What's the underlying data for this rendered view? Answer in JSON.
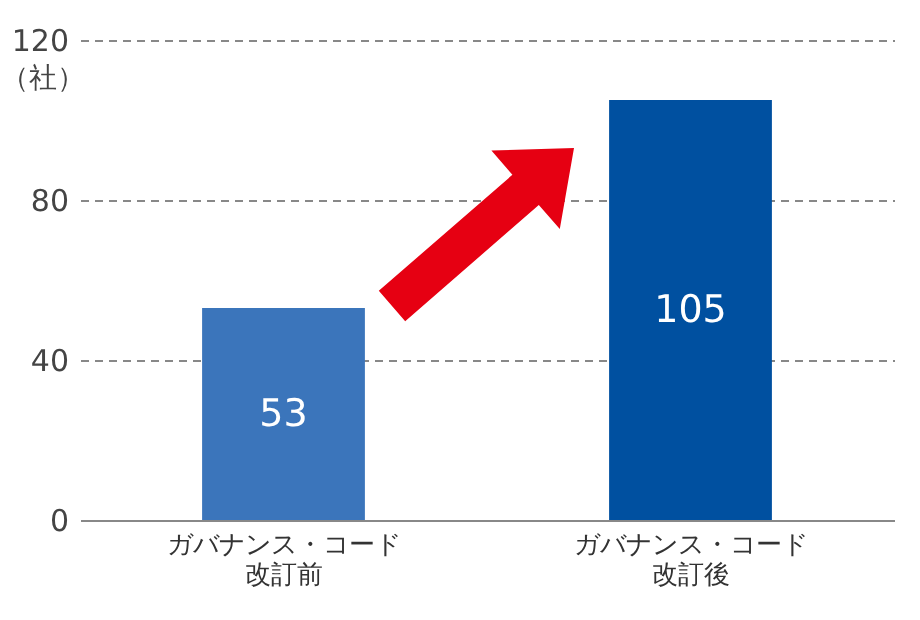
{
  "chart_data": {
    "type": "bar",
    "categories": [
      "ガバナンス・コード改訂前",
      "ガバナンス・コード改訂後"
    ],
    "values": [
      53,
      105
    ],
    "colors": [
      "#3b75bb",
      "#0050a0"
    ],
    "ylabel": "（社）",
    "ylim": [
      0,
      120
    ],
    "yticks": [
      0,
      40,
      80,
      120
    ],
    "grid": "y",
    "data_labels": true
  }
}
